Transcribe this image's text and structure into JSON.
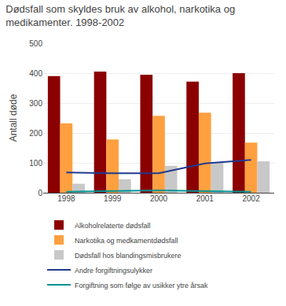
{
  "chart_data": {
    "type": "bar",
    "title": "Dødsfall som skyldes bruk av alkohol, narkotika og\nmedikamenter. 1998-2002",
    "ylabel": "Antall døde",
    "categories": [
      "1998",
      "1999",
      "2000",
      "2001",
      "2002"
    ],
    "series": [
      {
        "name": "Alkoholrelaterte dødsfall",
        "type": "bar",
        "color": "#8B0000",
        "values": [
          390,
          405,
          395,
          372,
          400
        ]
      },
      {
        "name": "Narkotika og medkamentdødsfall",
        "type": "bar",
        "color": "#FFA040",
        "values": [
          232,
          178,
          257,
          268,
          168
        ]
      },
      {
        "name": "Dødsfall hos blandingsmisbrukere",
        "type": "bar",
        "color": "#C8C8C8",
        "values": [
          30,
          45,
          90,
          100,
          105
        ]
      },
      {
        "name": "Andre forgiftningsulykker",
        "type": "line",
        "color": "#1F3A8F",
        "values": [
          68,
          65,
          65,
          98,
          110
        ]
      },
      {
        "name": "Forgiftning som følge av usikker ytre årsak",
        "type": "line",
        "color": "#009090",
        "values": [
          3,
          5,
          8,
          5,
          3
        ]
      }
    ],
    "ylim": [
      0,
      500
    ],
    "yticks": [
      0,
      100,
      200,
      300,
      400,
      500
    ],
    "grid": true,
    "legend": "bottom"
  }
}
